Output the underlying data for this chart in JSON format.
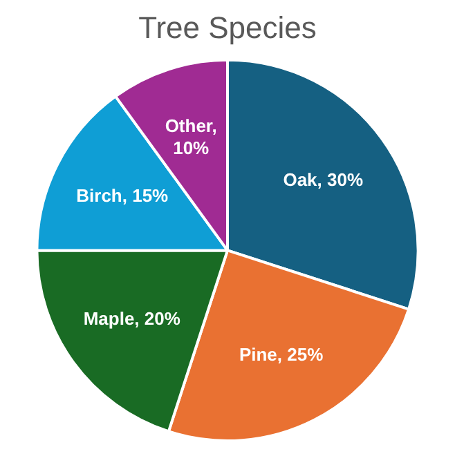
{
  "chart_data": {
    "type": "pie",
    "title": "Tree Species",
    "categories": [
      "Oak",
      "Pine",
      "Maple",
      "Birch",
      "Other"
    ],
    "values": [
      30,
      25,
      20,
      15,
      10
    ],
    "colors": [
      "#156082",
      "#e97132",
      "#196b24",
      "#0f9ed5",
      "#a02b93"
    ],
    "value_labels": [
      ", 30%",
      ", 25%",
      ", 20%",
      ", 15%",
      ", 10%"
    ],
    "legend": false
  }
}
